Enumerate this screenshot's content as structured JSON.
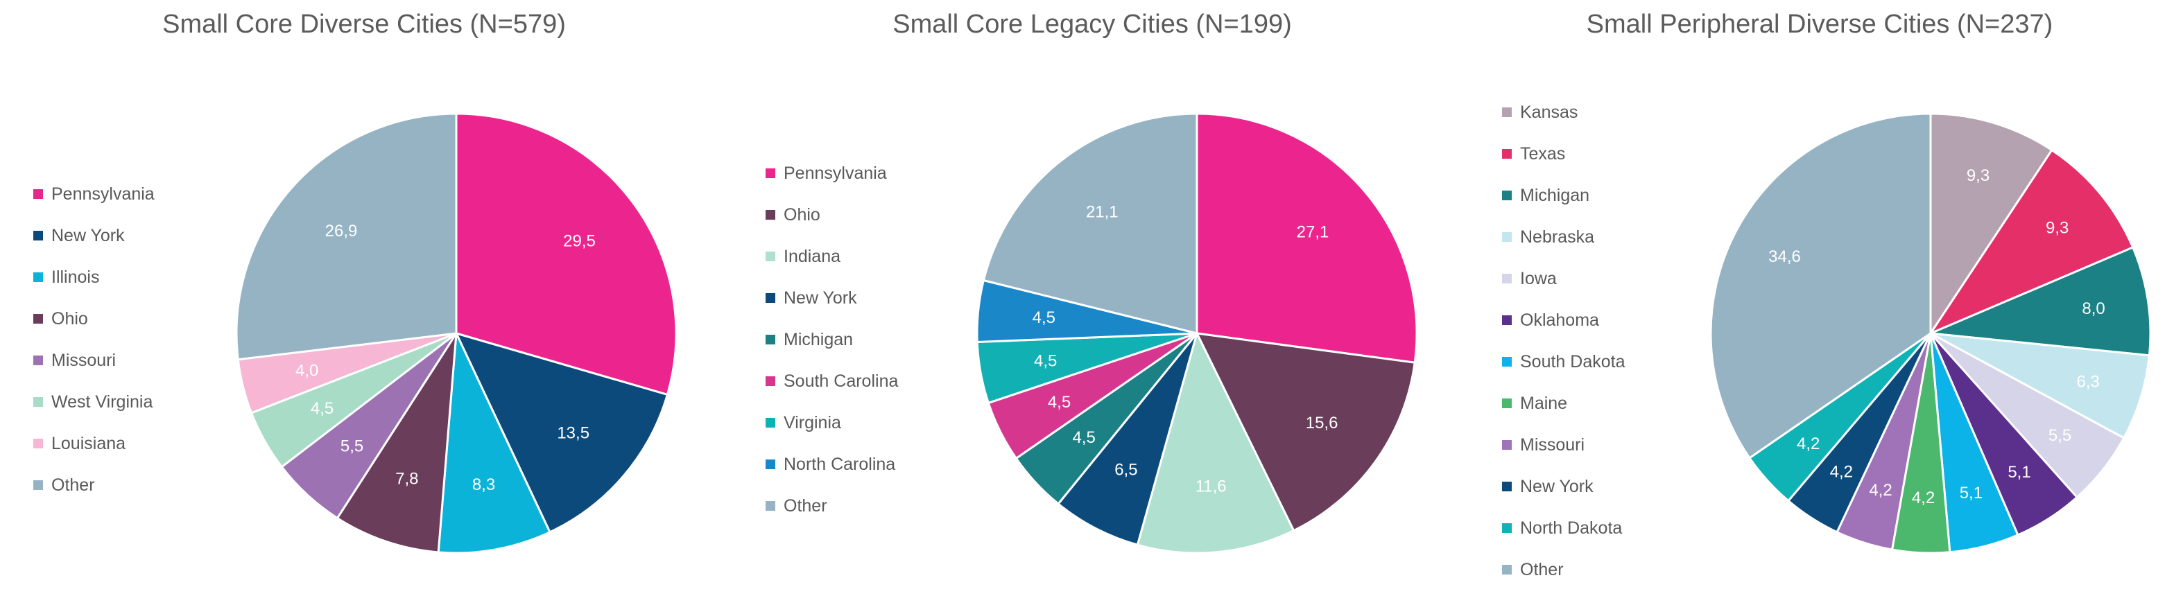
{
  "chart_data": [
    {
      "type": "pie",
      "title": "Small Core Diverse Cities (N=579)",
      "legend_position": "left",
      "categories": [
        "Pennsylvania",
        "New York",
        "Illinois",
        "Ohio",
        "Missouri",
        "West Virginia",
        "Louisiana",
        "Other"
      ],
      "values": [
        29.5,
        13.5,
        8.3,
        7.8,
        5.5,
        4.5,
        4.0,
        26.9
      ],
      "labels": [
        "29,5",
        "13,5",
        "8,3",
        "7,8",
        "5,5",
        "4,5",
        "4,0",
        "26,9"
      ],
      "colors": [
        "#ec248e",
        "#0d4a7c",
        "#0bb3d8",
        "#6a3d5b",
        "#9d72b3",
        "#a8dcc6",
        "#f6b6d4",
        "#96b3c4"
      ]
    },
    {
      "type": "pie",
      "title": "Small Core Legacy Cities (N=199)",
      "legend_position": "left",
      "categories": [
        "Pennsylvania",
        "Ohio",
        "Indiana",
        "New York",
        "Michigan",
        "South Carolina",
        "Virginia",
        "North Carolina",
        "Other"
      ],
      "values": [
        27.1,
        15.6,
        11.6,
        6.5,
        4.5,
        4.5,
        4.5,
        4.5,
        21.1
      ],
      "labels": [
        "27,1",
        "15,6",
        "11,6",
        "6,5",
        "4,5",
        "4,5",
        "4,5",
        "4,5",
        "21,1"
      ],
      "colors": [
        "#ec248e",
        "#6a3d5b",
        "#b0e0d0",
        "#0d4a7c",
        "#1c8184",
        "#d7368f",
        "#11b1b3",
        "#1a87c9",
        "#96b3c4"
      ]
    },
    {
      "type": "pie",
      "title": "Small Peripheral Diverse Cities (N=237)",
      "legend_position": "left",
      "categories": [
        "Kansas",
        "Texas",
        "Michigan",
        "Nebraska",
        "Iowa",
        "Oklahoma",
        "South Dakota",
        "Maine",
        "Missouri",
        "New York",
        "North Dakota",
        "Other"
      ],
      "values": [
        9.3,
        9.3,
        8.0,
        6.3,
        5.5,
        5.1,
        5.1,
        4.2,
        4.2,
        4.2,
        4.2,
        34.6
      ],
      "labels": [
        "9,3",
        "9,3",
        "8,0",
        "6,3",
        "5,5",
        "5,1",
        "5,1",
        "4,2",
        "4,2",
        "4,2",
        "4,2",
        "34,6"
      ],
      "colors": [
        "#b5a2b0",
        "#e42f69",
        "#1c8184",
        "#c3e6ee",
        "#d6d4e8",
        "#5b2f8c",
        "#0bb3e8",
        "#4cb86e",
        "#a072b8",
        "#0d4a7c",
        "#0fb3b5",
        "#96b3c4"
      ]
    }
  ]
}
